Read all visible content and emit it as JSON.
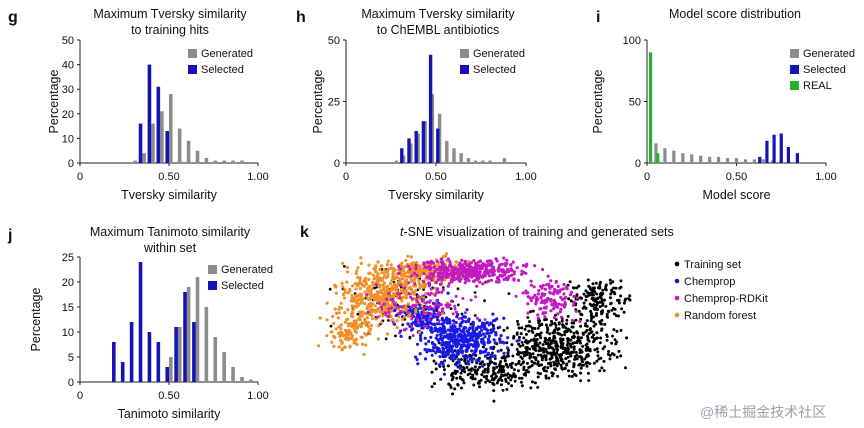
{
  "watermark": "@稀土掘金技术社区",
  "colors": {
    "generated": "#8c8c8c",
    "selected": "#1414b4",
    "real": "#22b32c",
    "training": "#000000",
    "chemprop": "#1a1ae6",
    "chemprop_rdkit": "#c21ac2",
    "random_forest": "#f0902a"
  },
  "chart_data": [
    {
      "panel": "g",
      "type": "bar",
      "title": [
        "Maximum Tversky similarity",
        "to training hits"
      ],
      "xlabel": "Tversky similarity",
      "ylabel": "Percentage",
      "xlim": [
        0,
        1
      ],
      "ylim": [
        0,
        50
      ],
      "xticks": [
        0,
        0.5,
        1
      ],
      "xtick_labels": [
        "0",
        "0.50",
        "1.00"
      ],
      "yticks": [
        0,
        10,
        20,
        30,
        40,
        50
      ],
      "ytick_labels": [
        "0",
        "10",
        "20",
        "30",
        "40",
        "50"
      ],
      "legend": [
        "Generated",
        "Selected"
      ],
      "series": [
        {
          "name": "Generated",
          "x": [
            0.31,
            0.36,
            0.41,
            0.46,
            0.51,
            0.56,
            0.61,
            0.66,
            0.71,
            0.76,
            0.81,
            0.86,
            0.91
          ],
          "values": [
            1,
            4,
            16,
            21,
            28,
            14,
            9,
            5,
            2,
            1,
            1,
            1,
            1
          ]
        },
        {
          "name": "Selected",
          "x": [
            0.34,
            0.39,
            0.44,
            0.49
          ],
          "values": [
            16,
            40,
            31,
            13
          ]
        }
      ]
    },
    {
      "panel": "h",
      "type": "bar",
      "title": [
        "Maximum Tversky similarity",
        "to ChEMBL antibiotics"
      ],
      "xlabel": "Tversky similarity",
      "ylabel": "Percentage",
      "xlim": [
        0,
        1
      ],
      "ylim": [
        0,
        50
      ],
      "xticks": [
        0,
        0.5,
        1
      ],
      "xtick_labels": [
        "0",
        "0.50",
        "1.00"
      ],
      "yticks": [
        0,
        25,
        50
      ],
      "ytick_labels": [
        "0",
        "25",
        "50"
      ],
      "legend": [
        "Generated",
        "Selected"
      ],
      "series": [
        {
          "name": "Generated",
          "x": [
            0.28,
            0.32,
            0.36,
            0.4,
            0.44,
            0.48,
            0.52,
            0.56,
            0.6,
            0.64,
            0.68,
            0.72,
            0.76,
            0.8,
            0.88
          ],
          "values": [
            1,
            3,
            8,
            12,
            17,
            28,
            20,
            9,
            6,
            4,
            2,
            1,
            1,
            1,
            2
          ]
        },
        {
          "name": "Selected",
          "x": [
            0.31,
            0.35,
            0.39,
            0.43,
            0.47,
            0.51
          ],
          "values": [
            6,
            10,
            13,
            17,
            44,
            14
          ]
        }
      ]
    },
    {
      "panel": "i",
      "type": "bar",
      "title": [
        "Model score distribution"
      ],
      "xlabel": "Model score",
      "ylabel": "Percentage",
      "xlim": [
        0,
        1
      ],
      "ylim": [
        0,
        100
      ],
      "xticks": [
        0,
        0.5,
        1
      ],
      "xtick_labels": [
        "0",
        "0.50",
        "1.00"
      ],
      "yticks": [
        0,
        50,
        100
      ],
      "ytick_labels": [
        "0",
        "50",
        "100"
      ],
      "legend": [
        "Generated",
        "Selected",
        "REAL"
      ],
      "series": [
        {
          "name": "Generated",
          "x": [
            0.05,
            0.1,
            0.15,
            0.2,
            0.25,
            0.3,
            0.35,
            0.4,
            0.45,
            0.5,
            0.55,
            0.6,
            0.65,
            0.7,
            0.75,
            0.8
          ],
          "values": [
            16,
            12,
            10,
            8,
            7,
            6,
            5,
            5,
            4,
            4,
            3,
            3,
            3,
            2,
            2,
            1
          ]
        },
        {
          "name": "Selected",
          "x": [
            0.63,
            0.67,
            0.71,
            0.75,
            0.79,
            0.84
          ],
          "values": [
            5,
            18,
            23,
            24,
            13,
            8
          ]
        },
        {
          "name": "REAL",
          "x": [
            0.02,
            0.06
          ],
          "values": [
            90,
            8
          ]
        }
      ]
    },
    {
      "panel": "j",
      "type": "bar",
      "title": [
        "Maximum Tanimoto similarity",
        "within set"
      ],
      "xlabel": "Tanimoto similarity",
      "ylabel": "Percentage",
      "xlim": [
        0,
        1
      ],
      "ylim": [
        0,
        25
      ],
      "xticks": [
        0,
        0.5,
        1
      ],
      "xtick_labels": [
        "0",
        "0.50",
        "1.00"
      ],
      "yticks": [
        0,
        5,
        10,
        15,
        20,
        25
      ],
      "ytick_labels": [
        "0",
        "5",
        "10",
        "15",
        "20",
        "25"
      ],
      "legend": [
        "Generated",
        "Selected"
      ],
      "series": [
        {
          "name": "Generated",
          "x": [
            0.51,
            0.56,
            0.61,
            0.66,
            0.71,
            0.76,
            0.81,
            0.86,
            0.91,
            0.96
          ],
          "values": [
            5,
            11,
            19,
            21,
            15,
            9,
            6,
            3,
            1,
            0.5
          ]
        },
        {
          "name": "Selected",
          "x": [
            0.19,
            0.24,
            0.29,
            0.34,
            0.39,
            0.44,
            0.49,
            0.54,
            0.59,
            0.64
          ],
          "values": [
            8,
            4,
            12,
            24,
            10,
            8,
            3,
            11,
            18,
            12
          ]
        }
      ]
    },
    {
      "panel": "k",
      "type": "scatter",
      "title_prefix": "t",
      "title_rest": "-SNE visualization of training and generated sets",
      "legend": [
        "Training set",
        "Chemprop",
        "Chemprop-RDKit",
        "Random forest"
      ]
    }
  ]
}
